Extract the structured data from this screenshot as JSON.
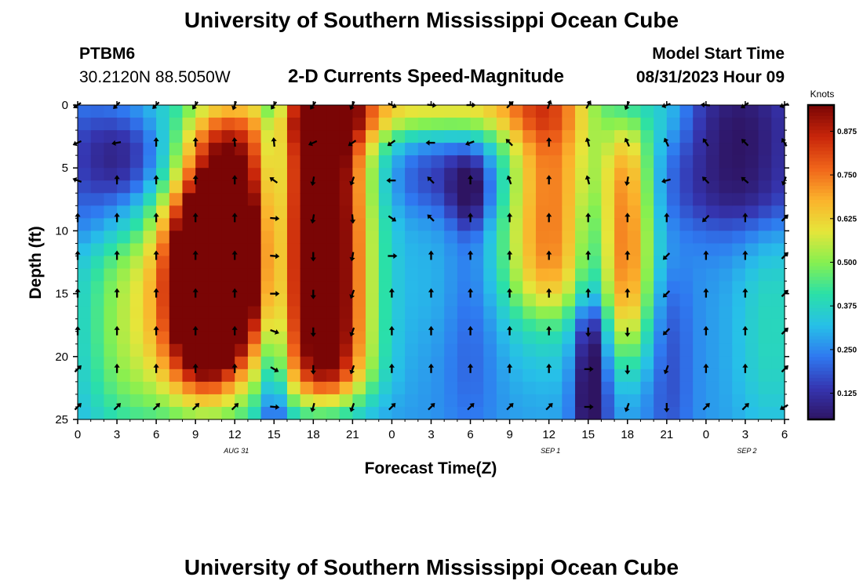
{
  "page": {
    "title": "University of Southern Mississippi Ocean Cube",
    "footer_title": "University of Southern Mississippi Ocean Cube"
  },
  "station": {
    "id": "PTBM6",
    "coords": "30.2120N  88.5050W"
  },
  "model": {
    "label": "Model Start Time",
    "start": "08/31/2023 Hour 09"
  },
  "chart_data": {
    "type": "heatmap",
    "title": "2-D Currents Speed-Magnitude",
    "xlabel": "Forecast Time(Z)",
    "ylabel": "Depth (ft)",
    "x_tick_labels": [
      "0",
      "3",
      "6",
      "9",
      "12",
      "15",
      "18",
      "21",
      "0",
      "3",
      "6",
      "9",
      "12",
      "15",
      "18",
      "21",
      "0",
      "3",
      "6"
    ],
    "x_tick_hours": [
      0,
      3,
      6,
      9,
      12,
      15,
      18,
      21,
      24,
      27,
      30,
      33,
      36,
      39,
      42,
      45,
      48,
      51,
      54
    ],
    "xlim": [
      0,
      54
    ],
    "ylim": [
      0,
      25
    ],
    "y_ticks": [
      0,
      5,
      10,
      15,
      20,
      25
    ],
    "y_tick_labels": [
      "0",
      "5",
      "10",
      "15",
      "20",
      "25"
    ],
    "date_labels": [
      {
        "text": "AUG 31",
        "hour": 12
      },
      {
        "text": "SEP 1",
        "hour": 36
      },
      {
        "text": "SEP 2",
        "hour": 51
      }
    ],
    "colorbar": {
      "unit": "Knots",
      "min": 0.05,
      "max": 0.95,
      "ticks": [
        0.125,
        0.25,
        0.375,
        0.5,
        0.625,
        0.75,
        0.875
      ],
      "tick_labels": [
        "0.125",
        "0.250",
        "0.375",
        "0.500",
        "0.625",
        "0.750",
        "0.875"
      ],
      "colors": [
        "#2e1462",
        "#3535b0",
        "#2f78f0",
        "#27c0e8",
        "#2ae0a8",
        "#86f050",
        "#e6e53a",
        "#fbb22c",
        "#f0641a",
        "#c8260a",
        "#7a0505"
      ]
    },
    "vector_depths": [
      0,
      3,
      6,
      9,
      12,
      15,
      18,
      21,
      24
    ],
    "vector_hours": [
      0,
      3,
      6,
      9,
      12,
      15,
      18,
      21,
      24,
      27,
      30,
      33,
      36,
      39,
      42,
      45,
      48,
      51,
      54
    ],
    "vector_angles_deg": [
      [
        235,
        225,
        225,
        215,
        200,
        215,
        215,
        205,
        115,
        95,
        90,
        45,
        20,
        30,
        205,
        250,
        275,
        235,
        250
      ],
      [
        245,
        260,
        0,
        0,
        355,
        355,
        245,
        235,
        235,
        270,
        250,
        315,
        0,
        345,
        335,
        335,
        325,
        315,
        330
      ],
      [
        290,
        0,
        0,
        0,
        0,
        305,
        190,
        200,
        270,
        315,
        0,
        340,
        0,
        345,
        190,
        255,
        315,
        310,
        200
      ],
      [
        0,
        0,
        0,
        0,
        0,
        95,
        190,
        175,
        125,
        315,
        0,
        0,
        0,
        0,
        0,
        0,
        225,
        0,
        45
      ],
      [
        0,
        0,
        0,
        0,
        0,
        95,
        180,
        190,
        90,
        0,
        0,
        0,
        0,
        0,
        0,
        225,
        0,
        0,
        45
      ],
      [
        0,
        0,
        0,
        0,
        0,
        90,
        180,
        200,
        0,
        0,
        0,
        0,
        0,
        0,
        0,
        225,
        0,
        0,
        45
      ],
      [
        0,
        0,
        0,
        0,
        0,
        110,
        180,
        200,
        0,
        0,
        0,
        0,
        0,
        180,
        180,
        225,
        0,
        0,
        45
      ],
      [
        45,
        0,
        0,
        0,
        0,
        120,
        180,
        200,
        0,
        0,
        0,
        0,
        0,
        90,
        180,
        200,
        0,
        0,
        45
      ],
      [
        45,
        45,
        45,
        45,
        45,
        95,
        195,
        200,
        45,
        45,
        45,
        45,
        45,
        90,
        200,
        180,
        45,
        45,
        240
      ]
    ]
  }
}
